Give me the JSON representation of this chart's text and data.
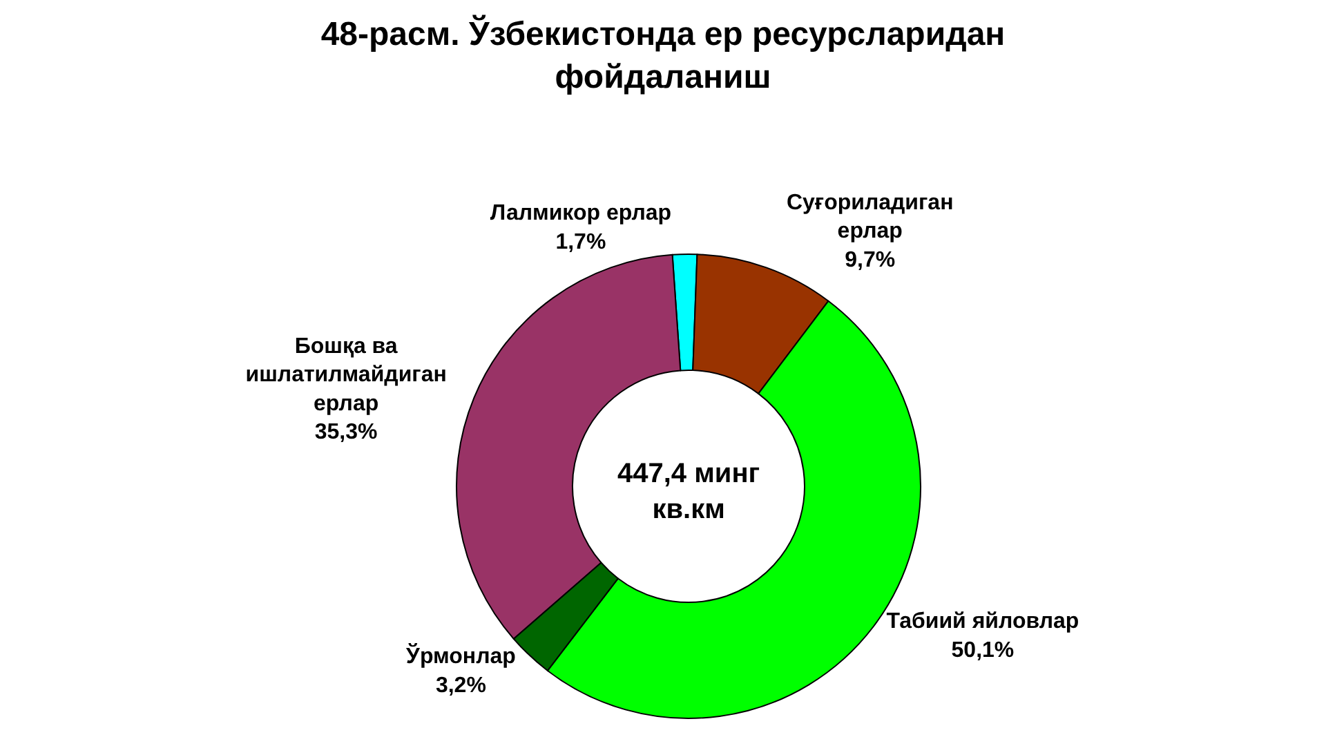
{
  "chart_data": {
    "type": "donut",
    "title": "48-расм. Ўзбекистонда ер ресурсларидан фойдаланиш",
    "categories": [
      "Лалмикор ерлар",
      "Суғориладиган ерлар",
      "Табиий яйловлар",
      "Ўрмонлар",
      "Бошқа ва ишлатилмайдиган ерлар"
    ],
    "values": [
      1.7,
      9.7,
      50.1,
      3.2,
      35.3
    ],
    "value_labels": [
      "1,7%",
      "9,7%",
      "50,1%",
      "3,2%",
      "35,3%"
    ],
    "colors": [
      "#00ffff",
      "#993300",
      "#00ff00",
      "#006600",
      "#993366"
    ],
    "annotations": [
      "447,4 минг кв.км"
    ],
    "legend": false
  }
}
